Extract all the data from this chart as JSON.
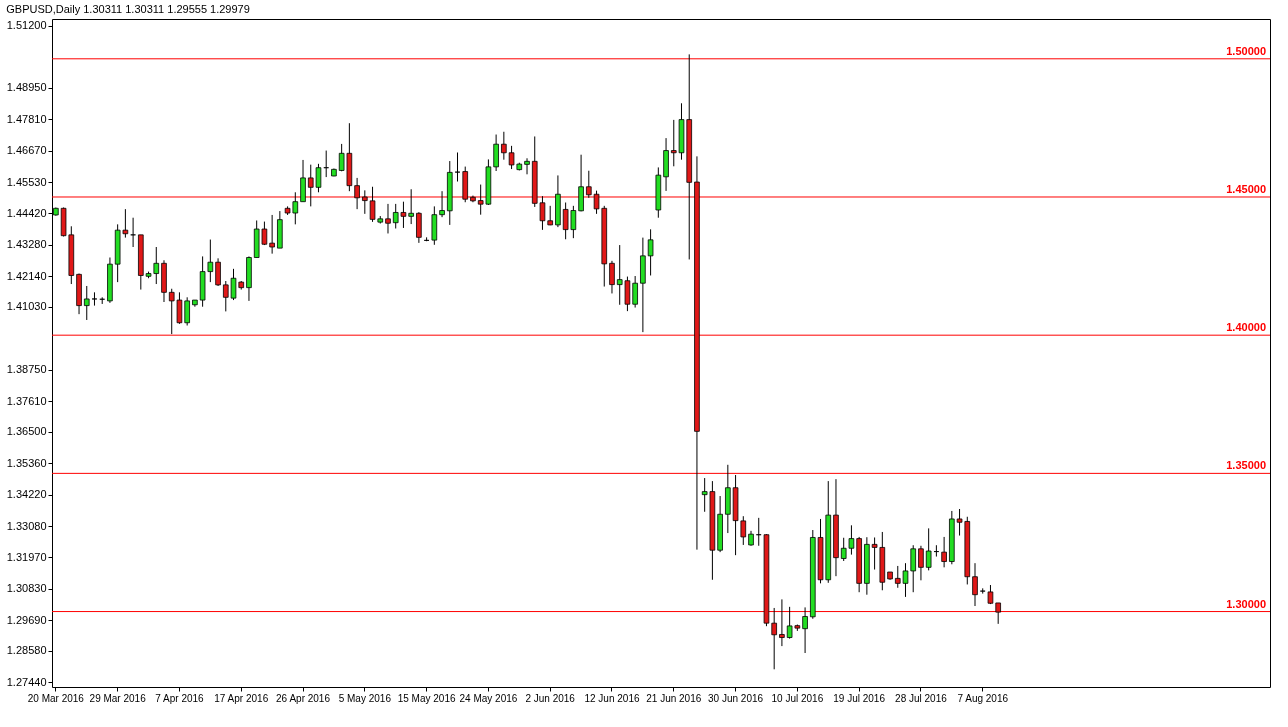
{
  "chart_data": {
    "type": "candlestick",
    "title": "GBPUSD,Daily  1.30311 1.30311 1.29555 1.29979",
    "categories": [
      "20 Mar 2016",
      null,
      null,
      null,
      null,
      null,
      null,
      null,
      "29 Mar 2016",
      null,
      null,
      null,
      null,
      null,
      null,
      null,
      "7 Apr 2016",
      null,
      null,
      null,
      null,
      null,
      null,
      null,
      "17 Apr 2016",
      null,
      null,
      null,
      null,
      null,
      null,
      null,
      "26 Apr 2016",
      null,
      null,
      null,
      null,
      null,
      null,
      null,
      "5 May 2016",
      null,
      null,
      null,
      null,
      null,
      null,
      null,
      "15 May 2016",
      null,
      null,
      null,
      null,
      null,
      null,
      null,
      "24 May 2016",
      null,
      null,
      null,
      null,
      null,
      null,
      null,
      "2 Jun 2016",
      null,
      null,
      null,
      null,
      null,
      null,
      null,
      "12 Jun 2016",
      null,
      null,
      null,
      null,
      null,
      null,
      null,
      "21 Jun 2016",
      null,
      null,
      null,
      null,
      null,
      null,
      null,
      "30 Jun 2016",
      null,
      null,
      null,
      null,
      null,
      null,
      null,
      "10 Jul 2016",
      null,
      null,
      null,
      null,
      null,
      null,
      null,
      "19 Jul 2016",
      null,
      null,
      null,
      null,
      null,
      null,
      null,
      "28 Jul 2016",
      null,
      null,
      null,
      null,
      null,
      null,
      null,
      "7 Aug 2016",
      null,
      null
    ],
    "ohlc": [
      [
        1.4435,
        1.4462,
        1.4432,
        1.4459
      ],
      [
        1.4459,
        1.4462,
        1.4357,
        1.436
      ],
      [
        1.4363,
        1.4394,
        1.4185,
        1.4216
      ],
      [
        1.422,
        1.4223,
        1.4076,
        1.4107
      ],
      [
        1.4107,
        1.4178,
        1.4055,
        1.4131
      ],
      [
        1.4131,
        1.4155,
        1.4107,
        1.4131
      ],
      [
        1.413,
        1.4137,
        1.4113,
        1.413
      ],
      [
        1.4124,
        1.4281,
        1.4117,
        1.4257
      ],
      [
        1.4257,
        1.4401,
        1.4192,
        1.438
      ],
      [
        1.438,
        1.4456,
        1.4353,
        1.4367
      ],
      [
        1.4363,
        1.4425,
        1.4319,
        1.4363
      ],
      [
        1.4363,
        1.4363,
        1.4165,
        1.4216
      ],
      [
        1.4213,
        1.423,
        1.4206,
        1.4223
      ],
      [
        1.4223,
        1.4319,
        1.4185,
        1.426
      ],
      [
        1.426,
        1.4271,
        1.412,
        1.4155
      ],
      [
        1.4155,
        1.4168,
        1.4004,
        1.4124
      ],
      [
        1.4127,
        1.4155,
        1.4041,
        1.4045
      ],
      [
        1.4045,
        1.4137,
        1.4035,
        1.4124
      ],
      [
        1.411,
        1.4127,
        1.4103,
        1.4127
      ],
      [
        1.4127,
        1.4285,
        1.4103,
        1.423
      ],
      [
        1.423,
        1.4346,
        1.4192,
        1.4264
      ],
      [
        1.4264,
        1.4278,
        1.4178,
        1.4182
      ],
      [
        1.4182,
        1.4196,
        1.4086,
        1.4137
      ],
      [
        1.4134,
        1.424,
        1.4127,
        1.4206
      ],
      [
        1.4192,
        1.4196,
        1.4165,
        1.4172
      ],
      [
        1.4172,
        1.4285,
        1.4124,
        1.4281
      ],
      [
        1.4281,
        1.4415,
        1.4281,
        1.4384
      ],
      [
        1.4384,
        1.4411,
        1.4326,
        1.4329
      ],
      [
        1.4333,
        1.4435,
        1.4295,
        1.4319
      ],
      [
        1.4315,
        1.4449,
        1.4315,
        1.4418
      ],
      [
        1.4459,
        1.4466,
        1.4435,
        1.4442
      ],
      [
        1.4442,
        1.4517,
        1.4401,
        1.4483
      ],
      [
        1.4483,
        1.4634,
        1.4483,
        1.4569
      ],
      [
        1.4569,
        1.4617,
        1.4466,
        1.4535
      ],
      [
        1.4535,
        1.462,
        1.4517,
        1.4606
      ],
      [
        1.4606,
        1.4668,
        1.4572,
        1.4606
      ],
      [
        1.4576,
        1.4603,
        1.4575,
        1.46
      ],
      [
        1.4596,
        1.4692,
        1.4593,
        1.4658
      ],
      [
        1.4658,
        1.4767,
        1.4521,
        1.4541
      ],
      [
        1.4541,
        1.4569,
        1.4456,
        1.4497
      ],
      [
        1.45,
        1.4524,
        1.4439,
        1.4487
      ],
      [
        1.4486,
        1.4537,
        1.441,
        1.4419
      ],
      [
        1.4409,
        1.4431,
        1.4404,
        1.4421
      ],
      [
        1.4421,
        1.4475,
        1.4368,
        1.4405
      ],
      [
        1.4407,
        1.4475,
        1.4386,
        1.4444
      ],
      [
        1.4444,
        1.4483,
        1.4388,
        1.443
      ],
      [
        1.443,
        1.4528,
        1.4402,
        1.4441
      ],
      [
        1.4441,
        1.4445,
        1.4334,
        1.4354
      ],
      [
        1.4343,
        1.4354,
        1.434,
        1.4343
      ],
      [
        1.4344,
        1.4466,
        1.4327,
        1.4436
      ],
      [
        1.4436,
        1.4521,
        1.4427,
        1.4451
      ],
      [
        1.445,
        1.463,
        1.4399,
        1.4589
      ],
      [
        1.459,
        1.4661,
        1.4556,
        1.459
      ],
      [
        1.4592,
        1.461,
        1.4481,
        1.4492
      ],
      [
        1.4499,
        1.4505,
        1.4481,
        1.4486
      ],
      [
        1.4487,
        1.4545,
        1.4436,
        1.4474
      ],
      [
        1.4474,
        1.4636,
        1.4471,
        1.4609
      ],
      [
        1.4609,
        1.4726,
        1.4594,
        1.4691
      ],
      [
        1.4691,
        1.4736,
        1.4635,
        1.466
      ],
      [
        1.466,
        1.4685,
        1.4601,
        1.4616
      ],
      [
        1.4599,
        1.4624,
        1.4596,
        1.4619
      ],
      [
        1.4618,
        1.464,
        1.4582,
        1.4629
      ],
      [
        1.4629,
        1.4719,
        1.4464,
        1.4477
      ],
      [
        1.4479,
        1.4503,
        1.4381,
        1.4414
      ],
      [
        1.4414,
        1.4468,
        1.4398,
        1.4399
      ],
      [
        1.4399,
        1.4578,
        1.4391,
        1.451
      ],
      [
        1.4455,
        1.448,
        1.4347,
        1.4382
      ],
      [
        1.4382,
        1.4468,
        1.4351,
        1.4451
      ],
      [
        1.445,
        1.4653,
        1.4448,
        1.4537
      ],
      [
        1.4537,
        1.4595,
        1.4497,
        1.4508
      ],
      [
        1.451,
        1.4523,
        1.4439,
        1.4457
      ],
      [
        1.4459,
        1.4468,
        1.4176,
        1.4258
      ],
      [
        1.426,
        1.4269,
        1.4151,
        1.4183
      ],
      [
        1.4183,
        1.4326,
        1.411,
        1.4201
      ],
      [
        1.4197,
        1.4212,
        1.4087,
        1.4112
      ],
      [
        1.4112,
        1.4214,
        1.41,
        1.4188
      ],
      [
        1.4188,
        1.4353,
        1.4011,
        1.4287
      ],
      [
        1.4287,
        1.4383,
        1.4216,
        1.4345
      ],
      [
        1.4453,
        1.4607,
        1.4425,
        1.4579
      ],
      [
        1.4573,
        1.4713,
        1.4522,
        1.4668
      ],
      [
        1.4668,
        1.4779,
        1.4611,
        1.466
      ],
      [
        1.466,
        1.4839,
        1.4635,
        1.478
      ],
      [
        1.478,
        1.5016,
        1.4274,
        1.4553
      ],
      [
        1.4554,
        1.4647,
        1.3224,
        1.3652
      ],
      [
        1.3423,
        1.3483,
        1.3361,
        1.3434
      ],
      [
        1.3434,
        1.3472,
        1.3115,
        1.3222
      ],
      [
        1.3222,
        1.3418,
        1.3215,
        1.3352
      ],
      [
        1.3352,
        1.3531,
        1.3284,
        1.3448
      ],
      [
        1.3448,
        1.3494,
        1.3204,
        1.3329
      ],
      [
        1.3328,
        1.3345,
        1.3241,
        1.327
      ],
      [
        1.3241,
        1.3292,
        1.3238,
        1.328
      ],
      [
        1.3278,
        1.3339,
        1.3238,
        1.3278
      ],
      [
        1.3278,
        1.328,
        1.2947,
        1.2958
      ],
      [
        1.2958,
        1.3013,
        1.2791,
        1.2916
      ],
      [
        1.2917,
        1.3044,
        1.2875,
        1.2906
      ],
      [
        1.2906,
        1.3017,
        1.2902,
        1.2948
      ],
      [
        1.2949,
        1.2953,
        1.293,
        1.294
      ],
      [
        1.2938,
        1.3015,
        1.285,
        1.2982
      ],
      [
        1.2981,
        1.3295,
        1.2974,
        1.3268
      ],
      [
        1.3268,
        1.3335,
        1.3102,
        1.3115
      ],
      [
        1.3115,
        1.3472,
        1.3104,
        1.3349
      ],
      [
        1.3349,
        1.3479,
        1.3128,
        1.3195
      ],
      [
        1.3192,
        1.3267,
        1.3183,
        1.3229
      ],
      [
        1.3229,
        1.3312,
        1.3206,
        1.3264
      ],
      [
        1.3264,
        1.327,
        1.307,
        1.3102
      ],
      [
        1.3102,
        1.3269,
        1.3061,
        1.3243
      ],
      [
        1.3243,
        1.3268,
        1.3152,
        1.3232
      ],
      [
        1.3232,
        1.3288,
        1.3077,
        1.3106
      ],
      [
        1.3143,
        1.3143,
        1.3115,
        1.3118
      ],
      [
        1.312,
        1.3165,
        1.3086,
        1.3102
      ],
      [
        1.3102,
        1.3175,
        1.3053,
        1.3147
      ],
      [
        1.3147,
        1.324,
        1.307,
        1.3227
      ],
      [
        1.3227,
        1.3238,
        1.3113,
        1.316
      ],
      [
        1.316,
        1.3301,
        1.3149,
        1.3219
      ],
      [
        1.3217,
        1.324,
        1.3199,
        1.3217
      ],
      [
        1.3215,
        1.327,
        1.316,
        1.3181
      ],
      [
        1.3181,
        1.3364,
        1.3171,
        1.3335
      ],
      [
        1.3335,
        1.3371,
        1.3275,
        1.3323
      ],
      [
        1.3326,
        1.3343,
        1.3098,
        1.3126
      ],
      [
        1.3126,
        1.3175,
        1.302,
        1.3061
      ],
      [
        1.3074,
        1.3084,
        1.3065,
        1.3074
      ],
      [
        1.3071,
        1.3096,
        1.3027,
        1.303
      ],
      [
        1.30311,
        1.30311,
        1.29555,
        1.29979
      ]
    ],
    "colors": [
      "#22dd22",
      "#e01818",
      "#e01818",
      "#e01818",
      "#22dd22",
      "#000000",
      "#000000",
      "#22dd22",
      "#22dd22",
      "#e01818",
      "#000000",
      "#e01818",
      "#22dd22",
      "#22dd22",
      "#e01818",
      "#e01818",
      "#e01818",
      "#22dd22",
      "#22dd22",
      "#22dd22",
      "#22dd22",
      "#e01818",
      "#e01818",
      "#22dd22",
      "#e01818",
      "#22dd22",
      "#22dd22",
      "#e01818",
      "#e01818",
      "#22dd22",
      "#e01818",
      "#22dd22",
      "#22dd22",
      "#e01818",
      "#22dd22",
      "#000000",
      "#22dd22",
      "#22dd22",
      "#e01818",
      "#e01818",
      "#e01818",
      "#e01818",
      "#22dd22",
      "#e01818",
      "#22dd22",
      "#e01818",
      "#22dd22",
      "#e01818",
      "#000000",
      "#22dd22",
      "#22dd22",
      "#22dd22",
      "#000000",
      "#e01818",
      "#e01818",
      "#e01818",
      "#22dd22",
      "#22dd22",
      "#e01818",
      "#e01818",
      "#22dd22",
      "#22dd22",
      "#e01818",
      "#e01818",
      "#e01818",
      "#22dd22",
      "#e01818",
      "#22dd22",
      "#22dd22",
      "#e01818",
      "#e01818",
      "#e01818",
      "#e01818",
      "#22dd22",
      "#e01818",
      "#22dd22",
      "#22dd22",
      "#22dd22",
      "#22dd22",
      "#22dd22",
      "#e01818",
      "#22dd22",
      "#e01818",
      "#e01818",
      "#22dd22",
      "#e01818",
      "#22dd22",
      "#22dd22",
      "#e01818",
      "#e01818",
      "#22dd22",
      "#000000",
      "#e01818",
      "#e01818",
      "#e01818",
      "#22dd22",
      "#e01818",
      "#22dd22",
      "#22dd22",
      "#e01818",
      "#22dd22",
      "#e01818",
      "#22dd22",
      "#22dd22",
      "#e01818",
      "#22dd22",
      "#e01818",
      "#e01818",
      "#e01818",
      "#e01818",
      "#22dd22",
      "#22dd22",
      "#e01818",
      "#22dd22",
      "#000000",
      "#e01818",
      "#22dd22",
      "#e01818",
      "#e01818",
      "#e01818",
      "#000000",
      "#e01818",
      "#e01818"
    ],
    "ylim": [
      1.2727,
      1.5144
    ],
    "yticks": [
      {
        "value": 1.2744,
        "label": "1.27440"
      },
      {
        "value": 1.2858,
        "label": "1.28580"
      },
      {
        "value": 1.2969,
        "label": "1.29690"
      },
      {
        "value": 1.3083,
        "label": "1.30830"
      },
      {
        "value": 1.3197,
        "label": "1.31970"
      },
      {
        "value": 1.3308,
        "label": "1.33080"
      },
      {
        "value": 1.3422,
        "label": "1.34220"
      },
      {
        "value": 1.3536,
        "label": "1.35360"
      },
      {
        "value": 1.365,
        "label": "1.36500"
      },
      {
        "value": 1.3761,
        "label": "1.37610"
      },
      {
        "value": 1.3875,
        "label": "1.38750"
      },
      {
        "value": 1.4103,
        "label": "1.41030"
      },
      {
        "value": 1.4214,
        "label": "1.42140"
      },
      {
        "value": 1.4328,
        "label": "1.43280"
      },
      {
        "value": 1.4442,
        "label": "1.44420"
      },
      {
        "value": 1.4553,
        "label": "1.45530"
      },
      {
        "value": 1.4667,
        "label": "1.46670"
      },
      {
        "value": 1.4781,
        "label": "1.47810"
      },
      {
        "value": 1.4895,
        "label": "1.48950"
      },
      {
        "value": 1.512,
        "label": "1.51200"
      }
    ],
    "ref_lines": [
      {
        "axis": "y",
        "value": 1.5,
        "label": "1.50000",
        "color": "#ff0000"
      },
      {
        "axis": "y",
        "value": 1.45,
        "label": "1.45000",
        "color": "#ff0000"
      },
      {
        "axis": "y",
        "value": 1.4,
        "label": "1.40000",
        "color": "#ff0000"
      },
      {
        "axis": "y",
        "value": 1.35,
        "label": "1.35000",
        "color": "#ff0000"
      },
      {
        "axis": "y",
        "value": 1.3,
        "label": "1.30000",
        "color": "#ff0000"
      }
    ]
  }
}
